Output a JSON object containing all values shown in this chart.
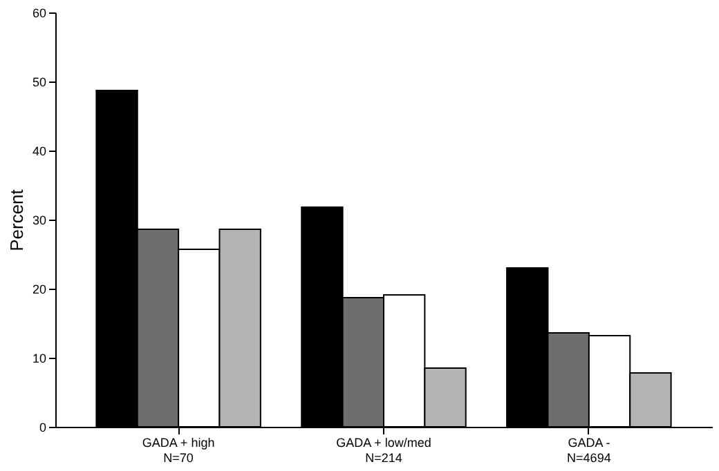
{
  "chart_data": {
    "type": "bar",
    "ylabel": "Percent",
    "categories": [
      "GADA + high\nN=70",
      "GADA + low/med\nN=214",
      "GADA -\nN=4694"
    ],
    "series": [
      {
        "color": "#000000",
        "values": [
          48.7,
          31.8,
          23.0
        ]
      },
      {
        "color": "#6e6e6e",
        "values": [
          28.6,
          18.7,
          13.6
        ]
      },
      {
        "color": "#ffffff",
        "values": [
          25.7,
          19.1,
          13.2
        ]
      },
      {
        "color": "#b4b4b4",
        "values": [
          28.6,
          8.5,
          7.8
        ]
      }
    ],
    "ylim": [
      0,
      60
    ],
    "yticks": [
      0,
      10,
      20,
      30,
      40,
      50,
      60
    ],
    "grid": false,
    "legend": false
  }
}
